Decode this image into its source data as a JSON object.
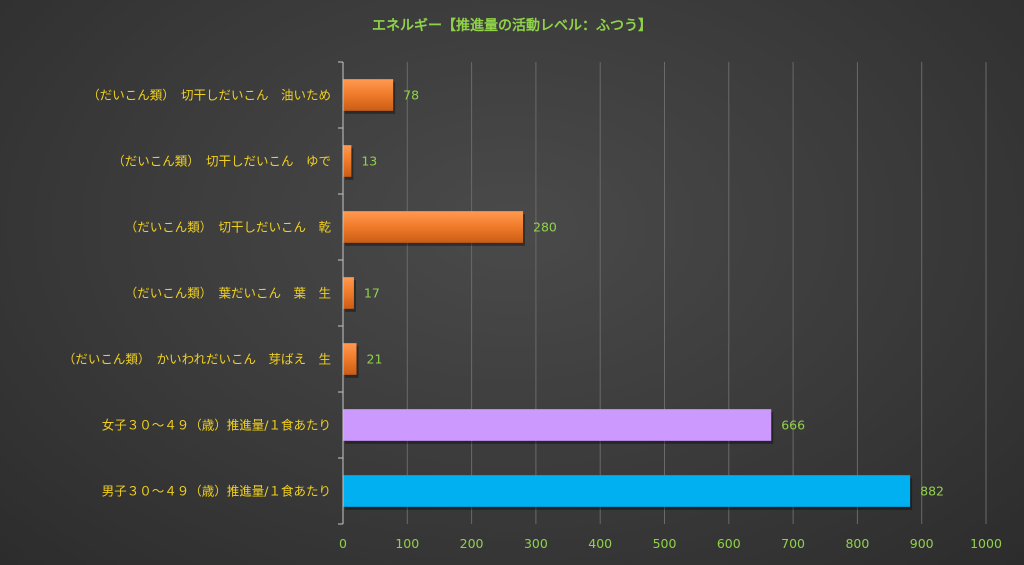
{
  "chart_data": {
    "type": "bar",
    "orientation": "horizontal",
    "title": "エネルギー【推進量の活動レベル：ふつう】",
    "categories": [
      "（だいこん類）　切干しだいこん　油いため",
      "（だいこん類）　切干しだいこん　ゆで",
      "（だいこん類）　切干しだいこん　乾",
      "（だいこん類）　葉だいこん　葉　生",
      "（だいこん類）　かいわれだいこん　芽ばえ　生",
      "女子３０～４９（歳）推進量/１食あたり",
      "男子３０～４９（歳）推進量/１食あたり"
    ],
    "values": [
      78,
      13,
      280,
      17,
      21,
      666,
      882
    ],
    "bar_colors": [
      "#f07a2a",
      "#f07a2a",
      "#f07a2a",
      "#f07a2a",
      "#f07a2a",
      "#cc99ff",
      "#00b0f0"
    ],
    "xlim": [
      0,
      1000
    ],
    "xticks": [
      0,
      100,
      200,
      300,
      400,
      500,
      600,
      700,
      800,
      900,
      1000
    ],
    "xlabel": "",
    "ylabel": "",
    "grid": true,
    "legend": "none"
  }
}
